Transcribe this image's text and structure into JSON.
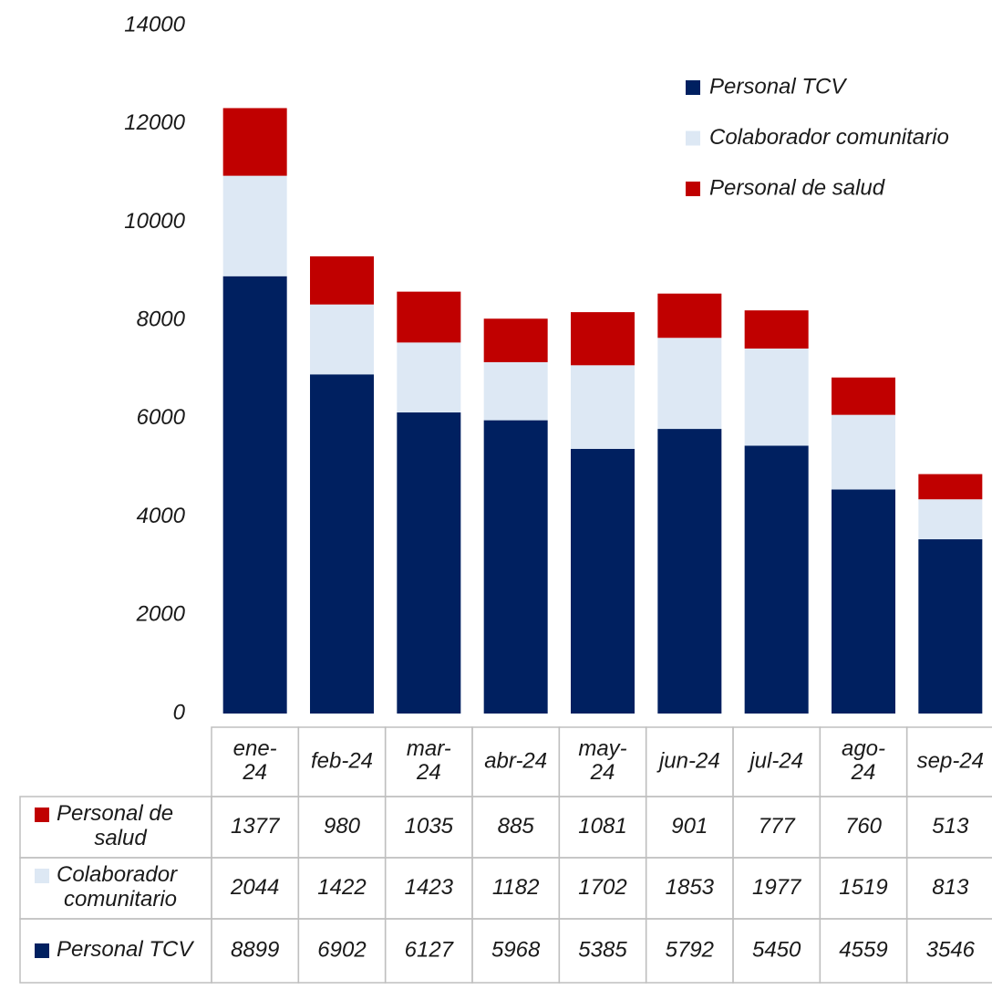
{
  "chart_data": {
    "type": "bar",
    "stacked": true,
    "categories": [
      "ene-24",
      "feb-24",
      "mar-24",
      "abr-24",
      "may-24",
      "jun-24",
      "jul-24",
      "ago-24",
      "sep-24"
    ],
    "series": [
      {
        "name": "Personal TCV",
        "color": "#002060",
        "values": [
          8899,
          6902,
          6127,
          5968,
          5385,
          5792,
          5450,
          4559,
          3546
        ]
      },
      {
        "name": "Colaborador comunitario",
        "color": "#dde8f4",
        "values": [
          2044,
          1422,
          1423,
          1182,
          1702,
          1853,
          1977,
          1519,
          813
        ]
      },
      {
        "name": "Personal de salud",
        "color": "#c00000",
        "values": [
          1377,
          980,
          1035,
          885,
          1081,
          901,
          777,
          760,
          513
        ]
      }
    ],
    "ylim": [
      0,
      14000
    ],
    "yticks": [
      0,
      2000,
      4000,
      6000,
      8000,
      10000,
      12000,
      14000
    ],
    "grid": false,
    "legend": "upper right",
    "data_table": true
  }
}
